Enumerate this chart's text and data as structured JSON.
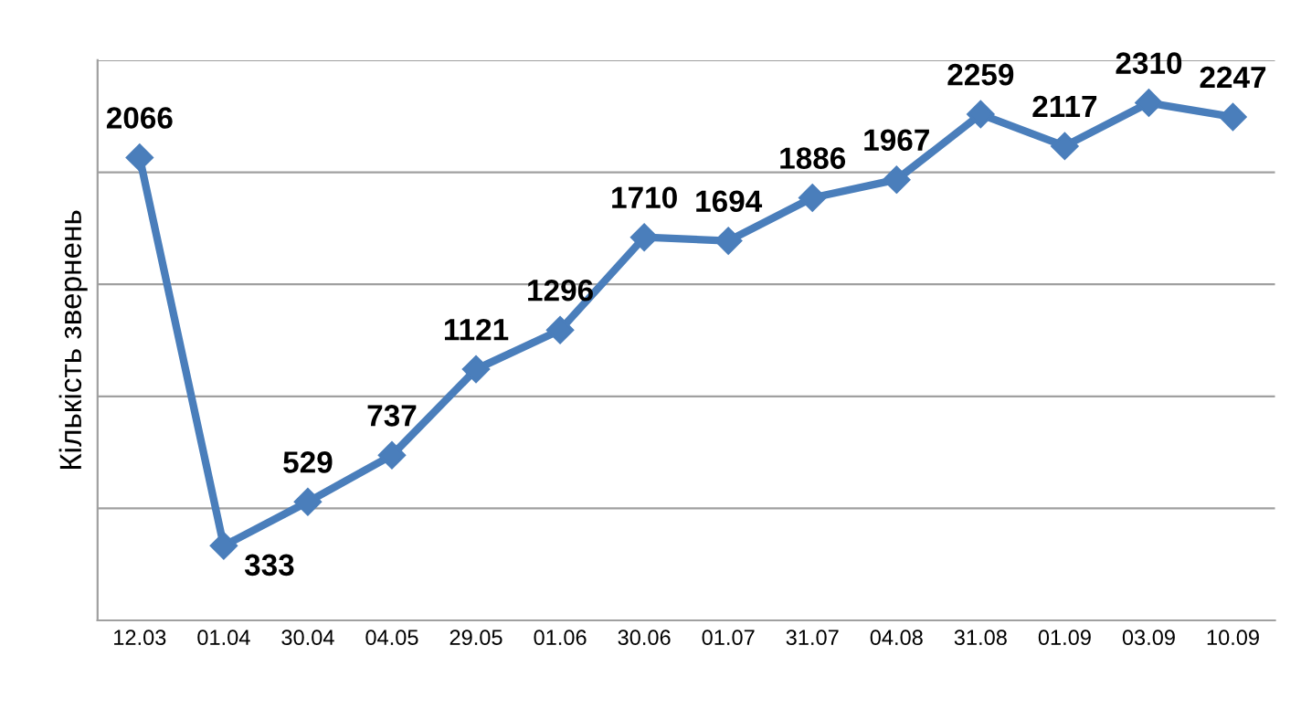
{
  "chart_data": {
    "type": "line",
    "ylabel": "Кількість звернень",
    "categories": [
      "12.03",
      "01.04",
      "30.04",
      "04.05",
      "29.05",
      "01.06",
      "30.06",
      "01.07",
      "31.07",
      "04.08",
      "31.08",
      "01.09",
      "03.09",
      "10.09"
    ],
    "series": [
      {
        "color": "#4a7ebb",
        "values": [
          2066,
          333,
          529,
          737,
          1121,
          1296,
          1710,
          1694,
          1886,
          1967,
          2259,
          2117,
          2310,
          2247
        ]
      }
    ],
    "ylim": [
      0,
      2500
    ],
    "yticks": [
      {
        "value": 0,
        "label": null
      },
      {
        "value": 500,
        "label": null
      },
      {
        "value": 1000,
        "label": null
      },
      {
        "value": 1500,
        "label": null
      },
      {
        "value": 2000,
        "label": null
      },
      {
        "value": 2500,
        "label": null
      }
    ],
    "tick_labels": "x",
    "grid": "y",
    "data_labels": true,
    "marker": "diamond",
    "line_style": "solid"
  }
}
